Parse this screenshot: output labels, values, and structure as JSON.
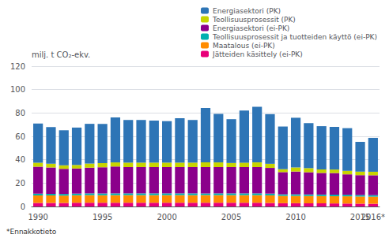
{
  "chart_data": {
    "type": "bar",
    "stacked": true,
    "grid": true,
    "legend": "upper right",
    "ylabel": "milj. t CO₂-ekv.",
    "annotations": [
      "*Ennakkotieto"
    ],
    "ylim": [
      0,
      120
    ],
    "yticks": [
      0,
      20,
      40,
      60,
      80,
      100,
      120
    ],
    "categories": [
      "1990",
      null,
      null,
      null,
      null,
      "1995",
      null,
      null,
      null,
      null,
      "2000",
      null,
      null,
      null,
      null,
      "2005",
      null,
      null,
      null,
      null,
      "2010",
      null,
      null,
      null,
      null,
      "2015",
      "2016*"
    ],
    "series": [
      {
        "name": "Jätteiden käsittely (ei-PK)",
        "color": "#e8007a",
        "values": [
          3.0,
          3.0,
          3.0,
          3.2,
          3.2,
          3.2,
          3.2,
          3.2,
          3.2,
          3.2,
          3.2,
          3.2,
          3.2,
          3.2,
          3.2,
          3.2,
          3.2,
          3.2,
          3.0,
          2.8,
          2.8,
          2.7,
          2.7,
          2.6,
          2.5,
          2.4,
          2.3
        ]
      },
      {
        "name": "Maatalous (ei-PK)",
        "color": "#ff8c00",
        "values": [
          6.5,
          6.4,
          6.3,
          6.4,
          6.5,
          6.4,
          6.5,
          6.5,
          6.5,
          6.5,
          6.5,
          6.5,
          6.5,
          6.5,
          6.5,
          6.5,
          6.5,
          6.5,
          6.5,
          6.3,
          6.3,
          6.3,
          6.2,
          6.2,
          6.2,
          6.1,
          6.1
        ]
      },
      {
        "name": "Teollisuusprosessit ja tuotteiden käyttö (ei-PK)",
        "color": "#00b0b0",
        "values": [
          1.5,
          1.4,
          1.4,
          1.4,
          1.5,
          1.5,
          1.5,
          1.5,
          1.5,
          1.5,
          1.5,
          1.5,
          1.5,
          1.5,
          1.5,
          1.5,
          1.5,
          1.5,
          1.5,
          1.3,
          1.3,
          1.3,
          1.3,
          1.3,
          1.3,
          1.3,
          1.3
        ]
      },
      {
        "name": "Energiasektori (ei-PK)",
        "color": "#8b008b",
        "values": [
          23.0,
          22.5,
          21.5,
          21.5,
          22.0,
          22.5,
          23.0,
          22.5,
          22.5,
          22.5,
          22.5,
          22.5,
          22.5,
          22.5,
          22.5,
          22.5,
          22.5,
          22.5,
          22.0,
          19.0,
          19.5,
          19.0,
          18.5,
          18.5,
          17.5,
          17.0,
          17.0
        ]
      },
      {
        "name": "Teollisuusprosessit (PK)",
        "color": "#c8d400",
        "values": [
          3.5,
          3.2,
          3.0,
          3.0,
          3.5,
          3.5,
          3.5,
          3.8,
          3.8,
          3.8,
          3.8,
          3.8,
          3.8,
          4.0,
          4.0,
          3.5,
          3.8,
          4.0,
          3.5,
          2.5,
          3.5,
          3.5,
          3.0,
          3.0,
          3.0,
          3.0,
          3.0
        ]
      },
      {
        "name": "Energiasektori (PK)",
        "color": "#2e75b6",
        "values": [
          33.5,
          31.5,
          30.0,
          32.0,
          34.0,
          33.5,
          38.5,
          36.5,
          36.5,
          36.0,
          35.5,
          38.0,
          36.5,
          46.5,
          41.5,
          37.5,
          44.5,
          47.5,
          42.5,
          36.5,
          42.5,
          38.5,
          37.0,
          36.5,
          36.5,
          25.5,
          29.0
        ]
      }
    ]
  }
}
